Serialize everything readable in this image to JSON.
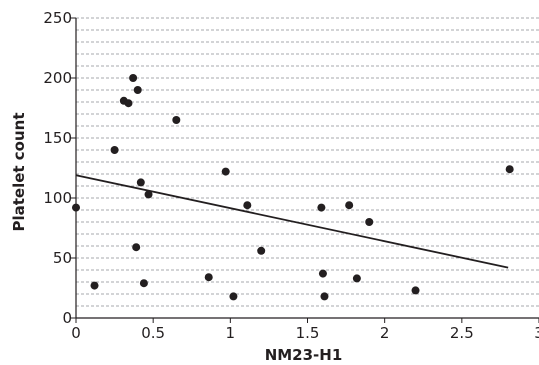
{
  "chart_data": {
    "type": "scatter",
    "title": "",
    "xlabel": "NM23-H1",
    "ylabel": "Platelet count",
    "xlim": [
      0,
      3
    ],
    "ylim": [
      0,
      250
    ],
    "x_ticks": [
      0,
      0.5,
      1,
      1.5,
      2,
      2.5,
      3
    ],
    "x_tick_labels": [
      "0",
      "0.5",
      "1",
      "1.5",
      "2",
      "2.5",
      "3"
    ],
    "y_ticks": [
      0,
      50,
      100,
      150,
      200,
      250
    ],
    "y_tick_labels": [
      "0",
      "50",
      "100",
      "150",
      "200",
      "250"
    ],
    "grid": "horizontal dashed",
    "legend": "none",
    "series": [
      {
        "points": [
          {
            "x": 0.0,
            "y": 92
          },
          {
            "x": 0.12,
            "y": 27
          },
          {
            "x": 0.25,
            "y": 140
          },
          {
            "x": 0.31,
            "y": 181
          },
          {
            "x": 0.34,
            "y": 179
          },
          {
            "x": 0.37,
            "y": 200
          },
          {
            "x": 0.39,
            "y": 59
          },
          {
            "x": 0.4,
            "y": 190
          },
          {
            "x": 0.42,
            "y": 113
          },
          {
            "x": 0.44,
            "y": 29
          },
          {
            "x": 0.47,
            "y": 103
          },
          {
            "x": 0.65,
            "y": 165
          },
          {
            "x": 0.86,
            "y": 34
          },
          {
            "x": 0.97,
            "y": 122
          },
          {
            "x": 1.02,
            "y": 18
          },
          {
            "x": 1.11,
            "y": 94
          },
          {
            "x": 1.2,
            "y": 56
          },
          {
            "x": 1.59,
            "y": 92
          },
          {
            "x": 1.6,
            "y": 37
          },
          {
            "x": 1.61,
            "y": 18
          },
          {
            "x": 1.77,
            "y": 94
          },
          {
            "x": 1.82,
            "y": 33
          },
          {
            "x": 1.9,
            "y": 80
          },
          {
            "x": 2.2,
            "y": 23
          },
          {
            "x": 2.81,
            "y": 124
          }
        ]
      }
    ],
    "trendline": {
      "x": [
        0,
        2.8
      ],
      "y": [
        119,
        42
      ]
    },
    "colors": {
      "points": "#231f20",
      "line": "#231f20",
      "grid": "#a7a9ac",
      "axis": "#231f20"
    }
  }
}
